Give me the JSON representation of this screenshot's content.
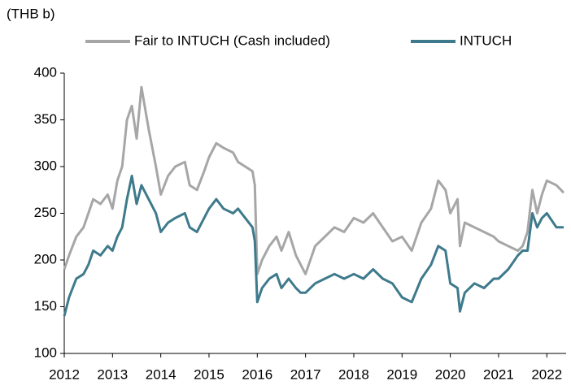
{
  "chart_data": {
    "type": "line",
    "y_axis_label": "(THB b)",
    "x": [
      2012.0,
      2012.1,
      2012.25,
      2012.4,
      2012.5,
      2012.6,
      2012.75,
      2012.9,
      2013.0,
      2013.1,
      2013.2,
      2013.3,
      2013.4,
      2013.5,
      2013.6,
      2013.75,
      2013.9,
      2014.0,
      2014.15,
      2014.3,
      2014.5,
      2014.6,
      2014.75,
      2014.9,
      2015.0,
      2015.15,
      2015.3,
      2015.5,
      2015.6,
      2015.75,
      2015.9,
      2015.95,
      2016.0,
      2016.1,
      2016.25,
      2016.4,
      2016.5,
      2016.65,
      2016.8,
      2016.9,
      2017.0,
      2017.2,
      2017.4,
      2017.6,
      2017.8,
      2018.0,
      2018.2,
      2018.4,
      2018.6,
      2018.8,
      2019.0,
      2019.2,
      2019.4,
      2019.6,
      2019.75,
      2019.9,
      2020.0,
      2020.15,
      2020.2,
      2020.3,
      2020.5,
      2020.7,
      2020.9,
      2021.0,
      2021.2,
      2021.4,
      2021.5,
      2021.6,
      2021.7,
      2021.8,
      2021.9,
      2022.0,
      2022.2,
      2022.35
    ],
    "series": [
      {
        "name": "Fair to INTUCH (Cash included)",
        "color": "#a6a6a6",
        "values": [
          190,
          205,
          225,
          235,
          250,
          265,
          260,
          270,
          255,
          285,
          300,
          350,
          365,
          330,
          385,
          340,
          300,
          270,
          290,
          300,
          305,
          280,
          275,
          295,
          310,
          325,
          320,
          315,
          305,
          300,
          295,
          280,
          185,
          200,
          215,
          225,
          210,
          230,
          205,
          195,
          185,
          215,
          225,
          235,
          230,
          245,
          240,
          250,
          235,
          220,
          225,
          210,
          240,
          255,
          285,
          275,
          250,
          265,
          215,
          240,
          235,
          230,
          225,
          220,
          215,
          210,
          215,
          230,
          275,
          250,
          270,
          285,
          280,
          272
        ]
      },
      {
        "name": "INTUCH",
        "color": "#3e7a8c",
        "values": [
          140,
          160,
          180,
          185,
          195,
          210,
          205,
          215,
          210,
          225,
          235,
          265,
          290,
          260,
          280,
          265,
          250,
          230,
          240,
          245,
          250,
          235,
          230,
          245,
          255,
          265,
          255,
          250,
          255,
          245,
          235,
          220,
          155,
          170,
          180,
          185,
          170,
          180,
          170,
          165,
          165,
          175,
          180,
          185,
          180,
          185,
          180,
          190,
          180,
          175,
          160,
          155,
          180,
          195,
          215,
          210,
          175,
          170,
          145,
          165,
          175,
          170,
          180,
          180,
          190,
          205,
          210,
          210,
          250,
          235,
          245,
          250,
          235,
          235
        ]
      }
    ],
    "xlim": [
      2012,
      2022.4
    ],
    "xticks": [
      2012,
      2013,
      2014,
      2015,
      2016,
      2017,
      2018,
      2019,
      2020,
      2021,
      2022
    ],
    "ylim": [
      100,
      400
    ],
    "yticks": [
      100,
      150,
      200,
      250,
      300,
      350,
      400
    ],
    "grid": false,
    "legend": "top"
  }
}
